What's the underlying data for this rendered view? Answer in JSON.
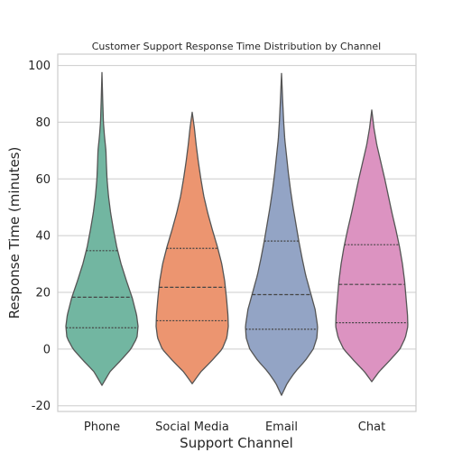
{
  "chart_data": {
    "type": "violin",
    "title": "Customer Support Response Time Distribution by Channel",
    "xlabel": "Support Channel",
    "ylabel": "Response Time (minutes)",
    "ylim": [
      -22,
      104
    ],
    "yticks": [
      -20,
      0,
      20,
      40,
      60,
      80,
      100
    ],
    "grid": true,
    "categories": [
      "Phone",
      "Social Media",
      "Email",
      "Chat"
    ],
    "colors": [
      "#72b6a1",
      "#ec9570",
      "#93a4c5",
      "#dc93c1"
    ],
    "series": [
      {
        "category": "Phone",
        "quartiles": [
          7.5,
          18.3,
          34.7
        ],
        "range": [
          -12.8,
          97.5
        ],
        "width_profile": [
          [
            -12.8,
            0.0
          ],
          [
            -8,
            0.22
          ],
          [
            -4,
            0.52
          ],
          [
            0,
            0.8
          ],
          [
            4,
            0.97
          ],
          [
            8,
            1.0
          ],
          [
            12,
            0.96
          ],
          [
            18,
            0.84
          ],
          [
            24,
            0.68
          ],
          [
            30,
            0.53
          ],
          [
            36,
            0.41
          ],
          [
            42,
            0.32
          ],
          [
            48,
            0.24
          ],
          [
            54,
            0.18
          ],
          [
            60,
            0.14
          ],
          [
            66,
            0.12
          ],
          [
            70,
            0.11
          ],
          [
            75,
            0.07
          ],
          [
            80,
            0.04
          ],
          [
            88,
            0.02
          ],
          [
            97.5,
            0.0
          ]
        ]
      },
      {
        "category": "Social Media",
        "quartiles": [
          10.0,
          21.8,
          35.5
        ],
        "range": [
          -12.2,
          83.5
        ],
        "width_profile": [
          [
            -12.2,
            0.0
          ],
          [
            -8,
            0.24
          ],
          [
            -4,
            0.55
          ],
          [
            0,
            0.83
          ],
          [
            4,
            0.96
          ],
          [
            8,
            1.0
          ],
          [
            12,
            0.99
          ],
          [
            18,
            0.95
          ],
          [
            24,
            0.9
          ],
          [
            30,
            0.82
          ],
          [
            36,
            0.7
          ],
          [
            42,
            0.56
          ],
          [
            48,
            0.43
          ],
          [
            54,
            0.32
          ],
          [
            60,
            0.24
          ],
          [
            66,
            0.17
          ],
          [
            72,
            0.11
          ],
          [
            78,
            0.06
          ],
          [
            83.5,
            0.0
          ]
        ]
      },
      {
        "category": "Email",
        "quartiles": [
          7.0,
          19.2,
          38.1
        ],
        "range": [
          -16.3,
          97.2
        ],
        "width_profile": [
          [
            -16.3,
            0.0
          ],
          [
            -12,
            0.16
          ],
          [
            -8,
            0.38
          ],
          [
            -4,
            0.66
          ],
          [
            0,
            0.88
          ],
          [
            4,
            0.98
          ],
          [
            8,
            1.0
          ],
          [
            14,
            0.93
          ],
          [
            20,
            0.8
          ],
          [
            26,
            0.67
          ],
          [
            32,
            0.57
          ],
          [
            38,
            0.48
          ],
          [
            44,
            0.4
          ],
          [
            50,
            0.32
          ],
          [
            56,
            0.25
          ],
          [
            62,
            0.19
          ],
          [
            68,
            0.14
          ],
          [
            74,
            0.09
          ],
          [
            80,
            0.06
          ],
          [
            88,
            0.03
          ],
          [
            97.2,
            0.0
          ]
        ]
      },
      {
        "category": "Chat",
        "quartiles": [
          9.3,
          22.8,
          36.8
        ],
        "range": [
          -11.5,
          84.3
        ],
        "width_profile": [
          [
            -11.5,
            0.0
          ],
          [
            -8,
            0.2
          ],
          [
            -4,
            0.5
          ],
          [
            0,
            0.78
          ],
          [
            4,
            0.93
          ],
          [
            8,
            1.0
          ],
          [
            12,
            0.99
          ],
          [
            18,
            0.95
          ],
          [
            24,
            0.91
          ],
          [
            30,
            0.85
          ],
          [
            36,
            0.77
          ],
          [
            42,
            0.67
          ],
          [
            48,
            0.56
          ],
          [
            54,
            0.46
          ],
          [
            60,
            0.36
          ],
          [
            66,
            0.25
          ],
          [
            72,
            0.14
          ],
          [
            78,
            0.06
          ],
          [
            84.3,
            0.0
          ]
        ]
      }
    ]
  }
}
